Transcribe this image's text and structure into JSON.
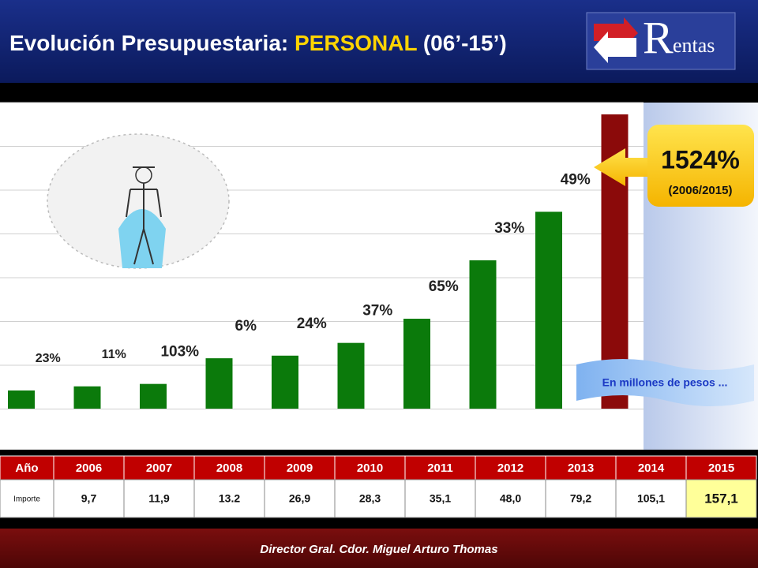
{
  "header": {
    "title_part1": "Evolución  Presupuestaria: ",
    "title_highlight": "PERSONAL",
    "title_part2": " (06’-15’)",
    "logo_initial": "R",
    "logo_rest": "entas"
  },
  "chart_data": {
    "type": "bar",
    "categories": [
      "2006",
      "2007",
      "2008",
      "2009",
      "2010",
      "2011",
      "2012",
      "2013",
      "2014",
      "2015"
    ],
    "values": [
      9.7,
      11.9,
      13.2,
      26.9,
      28.3,
      35.1,
      48.0,
      79.2,
      105.1,
      157.1
    ],
    "color": "#0b7a0b",
    "highlight_color": "#8b0a0a",
    "growth_labels": [
      "23%",
      "11%",
      "103%",
      "6%",
      "24%",
      "37%",
      "65%",
      "33%",
      "49%"
    ],
    "callout": {
      "value": "1524%",
      "period": "(2006/2015)"
    },
    "unit_note": "En millones de pesos ..."
  },
  "table": {
    "header": [
      "Año",
      "2006",
      "2007",
      "2008",
      "2009",
      "2010",
      "2011",
      "2012",
      "2013",
      "2014",
      "2015"
    ],
    "row": [
      "Importe",
      "9,7",
      "11,9",
      "13.2",
      "26,9",
      "28,3",
      "35,1",
      "48,0",
      "79,2",
      "105,1",
      "157,1"
    ]
  },
  "footer": {
    "text": "Director Gral.  Cdor. Miguel Arturo Thomas"
  }
}
